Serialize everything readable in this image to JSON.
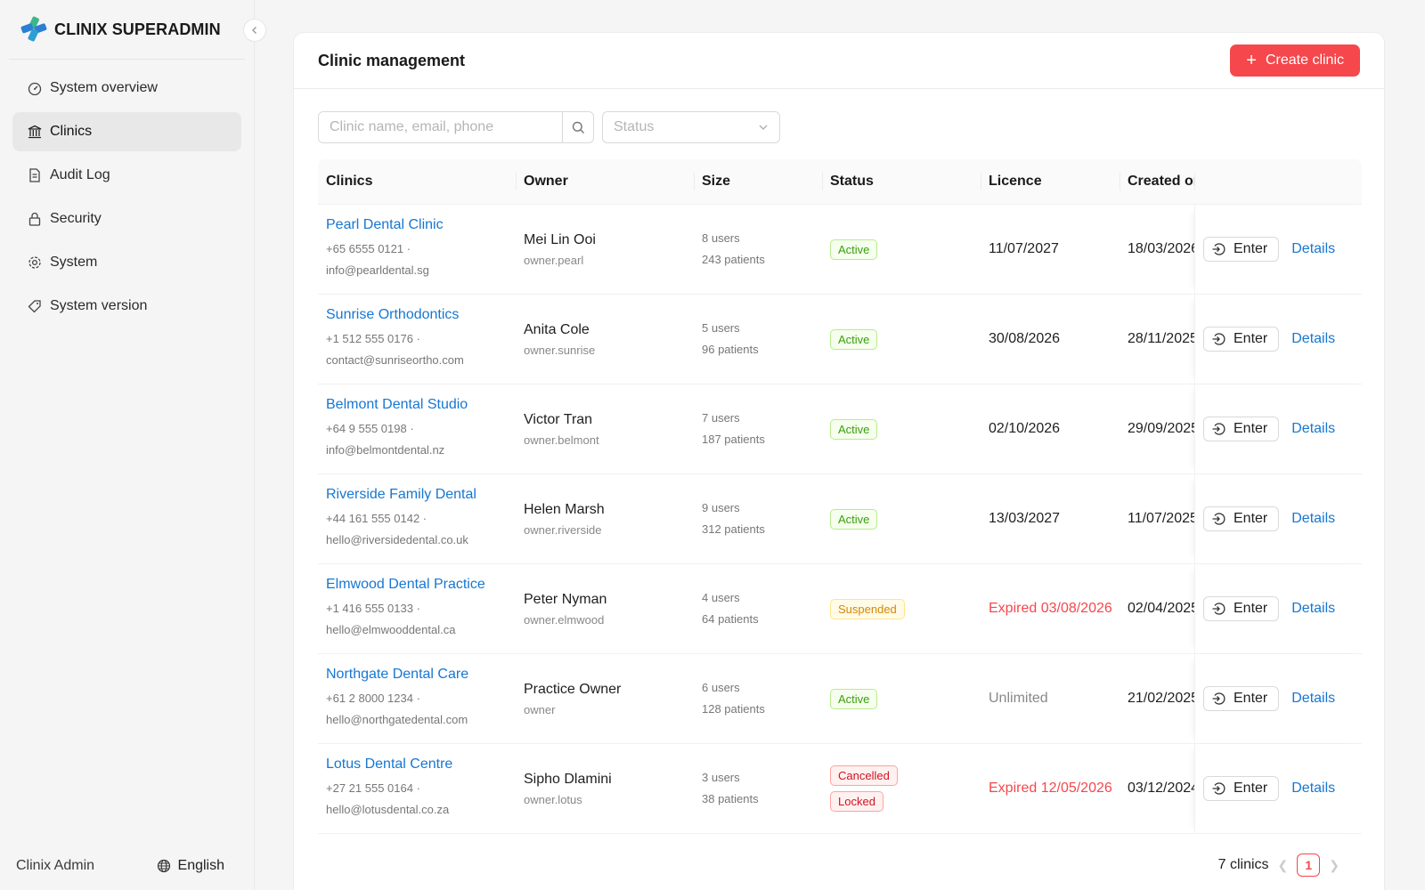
{
  "brand": {
    "title": "CLINIX SUPERADMIN"
  },
  "sidebar": {
    "items": [
      {
        "label": "System overview",
        "icon": "dashboard-icon",
        "active": false
      },
      {
        "label": "Clinics",
        "icon": "bank-icon",
        "active": true
      },
      {
        "label": "Audit Log",
        "icon": "file-icon",
        "active": false
      },
      {
        "label": "Security",
        "icon": "lock-icon",
        "active": false
      },
      {
        "label": "System",
        "icon": "gear-icon",
        "active": false
      },
      {
        "label": "System version",
        "icon": "tag-icon",
        "active": false
      }
    ],
    "footer_user": "Clinix Admin",
    "language": "English"
  },
  "page": {
    "title": "Clinic management",
    "create_label": "Create clinic",
    "search_placeholder": "Clinic name, email, phone",
    "status_placeholder": "Status"
  },
  "table": {
    "headers": [
      "Clinics",
      "Owner",
      "Size",
      "Status",
      "Licence",
      "Created on"
    ],
    "enter_label": "Enter",
    "details_label": "Details",
    "rows": [
      {
        "name": "Pearl Dental Clinic",
        "phone": "+65 6555 0121 ·",
        "email": "info@pearldental.sg",
        "owner": "Mei Lin Ooi",
        "owner_user": "owner.pearl",
        "users": "8 users",
        "patients": "243 patients",
        "tags": [
          {
            "label": "Active",
            "kind": "active"
          }
        ],
        "licence": "11/07/2027",
        "licence_kind": "normal",
        "created": "18/03/2026"
      },
      {
        "name": "Sunrise Orthodontics",
        "phone": "+1 512 555 0176 ·",
        "email": "contact@sunriseortho.com",
        "owner": "Anita Cole",
        "owner_user": "owner.sunrise",
        "users": "5 users",
        "patients": "96 patients",
        "tags": [
          {
            "label": "Active",
            "kind": "active"
          }
        ],
        "licence": "30/08/2026",
        "licence_kind": "normal",
        "created": "28/11/2025"
      },
      {
        "name": "Belmont Dental Studio",
        "phone": "+64 9 555 0198 ·",
        "email": "info@belmontdental.nz",
        "owner": "Victor Tran",
        "owner_user": "owner.belmont",
        "users": "7 users",
        "patients": "187 patients",
        "tags": [
          {
            "label": "Active",
            "kind": "active"
          }
        ],
        "licence": "02/10/2026",
        "licence_kind": "normal",
        "created": "29/09/2025"
      },
      {
        "name": "Riverside Family Dental",
        "phone": "+44 161 555 0142 ·",
        "email": "hello@riversidedental.co.uk",
        "owner": "Helen Marsh",
        "owner_user": "owner.riverside",
        "users": "9 users",
        "patients": "312 patients",
        "tags": [
          {
            "label": "Active",
            "kind": "active"
          }
        ],
        "licence": "13/03/2027",
        "licence_kind": "normal",
        "created": "11/07/2025"
      },
      {
        "name": "Elmwood Dental Practice",
        "phone": "+1 416 555 0133 ·",
        "email": "hello@elmwooddental.ca",
        "owner": "Peter Nyman",
        "owner_user": "owner.elmwood",
        "users": "4 users",
        "patients": "64 patients",
        "tags": [
          {
            "label": "Suspended",
            "kind": "suspended"
          }
        ],
        "licence": "Expired 03/08/2026",
        "licence_kind": "expired",
        "created": "02/04/2025"
      },
      {
        "name": "Northgate Dental Care",
        "phone": "+61 2 8000 1234 ·",
        "email": "hello@northgatedental.com",
        "owner": "Practice Owner",
        "owner_user": "owner",
        "users": "6 users",
        "patients": "128 patients",
        "tags": [
          {
            "label": "Active",
            "kind": "active"
          }
        ],
        "licence": "Unlimited",
        "licence_kind": "unlimited",
        "created": "21/02/2025"
      },
      {
        "name": "Lotus Dental Centre",
        "phone": "+27 21 555 0164 ·",
        "email": "hello@lotusdental.co.za",
        "owner": "Sipho Dlamini",
        "owner_user": "owner.lotus",
        "users": "3 users",
        "patients": "38 patients",
        "tags": [
          {
            "label": "Cancelled",
            "kind": "cancelled"
          },
          {
            "label": "Locked",
            "kind": "locked"
          }
        ],
        "licence": "Expired 12/05/2026",
        "licence_kind": "expired",
        "created": "03/12/2024"
      }
    ]
  },
  "pagination": {
    "total": "7 clinics",
    "current": "1"
  },
  "colors": {
    "accent": "#f5474c",
    "link": "#1677d2"
  }
}
